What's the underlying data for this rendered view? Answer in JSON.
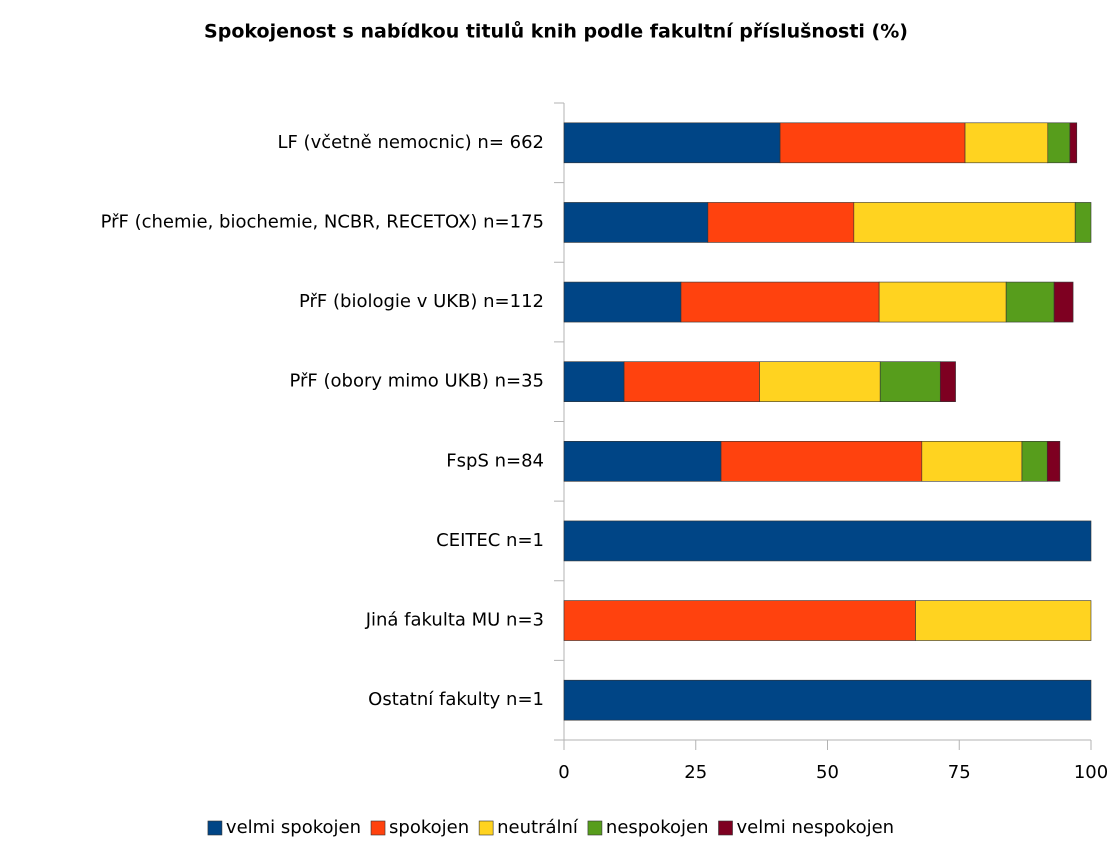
{
  "chart_data": {
    "type": "stacked_barh",
    "title": "Spokojenost s nabídkou titulů knih podle fakultní příslušnosti (%)",
    "categories": [
      "LF (včetně nemocnic) n= 662",
      "PřF (chemie, biochemie, NCBR, RECETOX) n=175",
      "PřF (biologie v UKB) n=112",
      "PřF (obory mimo UKB) n=35",
      "FspS n=84",
      "CEITEC n=1",
      "Jiná fakulta MU n=3",
      "Ostatní fakulty n=1"
    ],
    "series": [
      {
        "name": "velmi spokojen",
        "color": "#004586",
        "values": [
          41.0,
          27.3,
          22.2,
          11.4,
          29.8,
          100,
          0,
          100
        ]
      },
      {
        "name": "spokojen",
        "color": "#ff420e",
        "values": [
          35.1,
          27.7,
          37.6,
          25.7,
          38.1,
          0,
          66.7,
          0
        ]
      },
      {
        "name": "neutrální",
        "color": "#ffd320",
        "values": [
          15.7,
          42.0,
          24.1,
          22.9,
          19.0,
          0,
          33.3,
          0
        ]
      },
      {
        "name": "nespokojen",
        "color": "#579d1c",
        "values": [
          4.2,
          3.0,
          9.1,
          11.4,
          4.8,
          0,
          0,
          0
        ]
      },
      {
        "name": "velmi nespokojen",
        "color": "#7e0021",
        "values": [
          1.3,
          0,
          3.6,
          2.9,
          2.4,
          0,
          0,
          0
        ]
      }
    ],
    "xlim": [
      0,
      100
    ],
    "xticks": [
      0,
      25,
      50,
      75,
      100
    ],
    "legend": "bottom"
  }
}
